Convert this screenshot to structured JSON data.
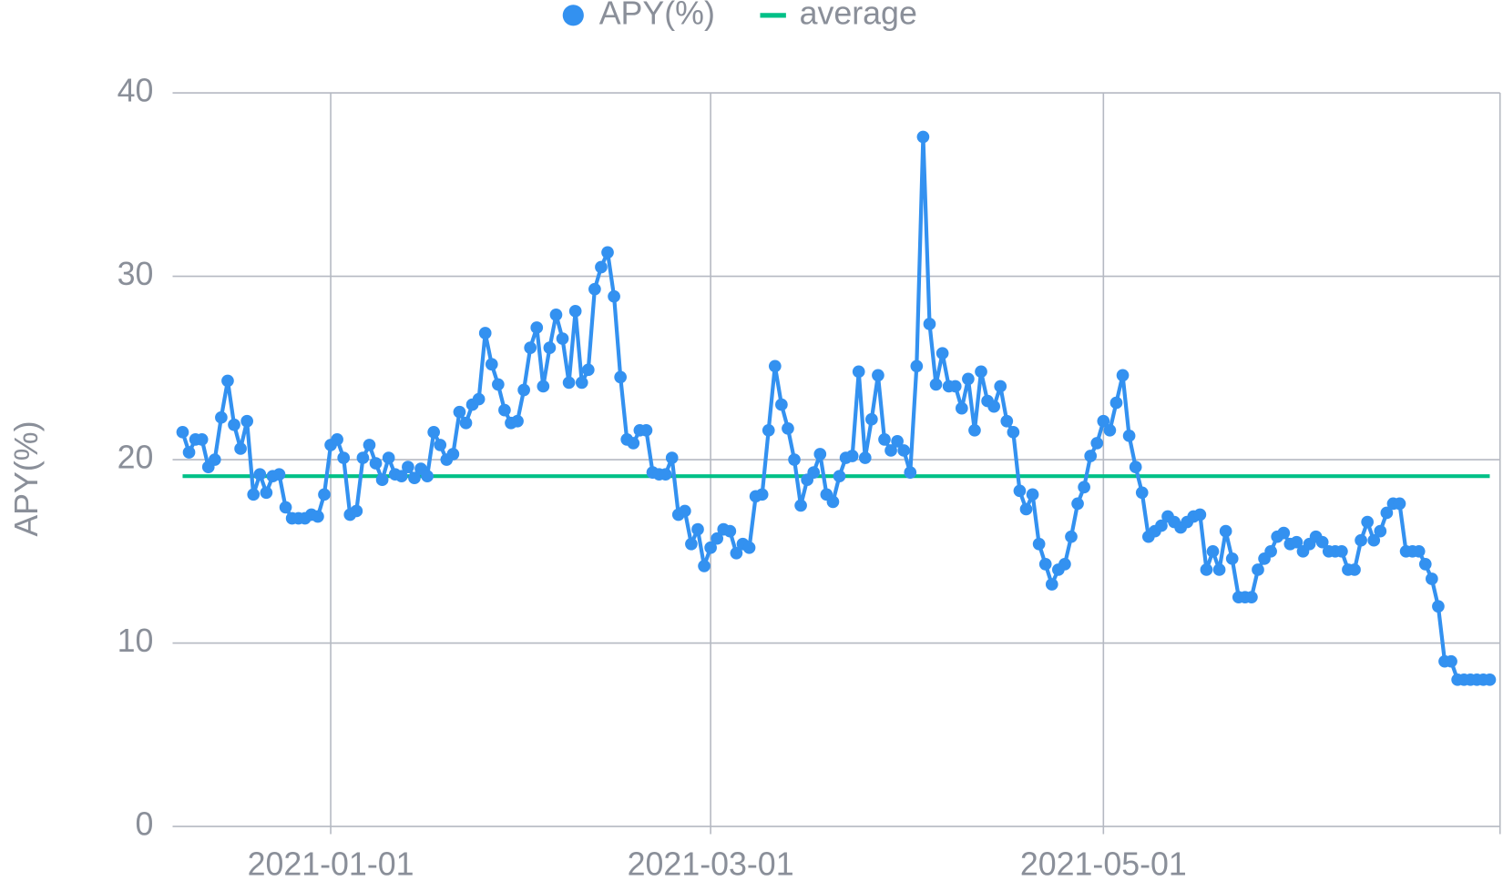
{
  "chart_data": {
    "type": "line",
    "y_label": "APY(%)",
    "x": [
      "2020-12-09",
      "2020-12-10",
      "2020-12-11",
      "2020-12-12",
      "2020-12-13",
      "2020-12-14",
      "2020-12-15",
      "2020-12-16",
      "2020-12-17",
      "2020-12-18",
      "2020-12-19",
      "2020-12-20",
      "2020-12-21",
      "2020-12-22",
      "2020-12-23",
      "2020-12-24",
      "2020-12-25",
      "2020-12-26",
      "2020-12-27",
      "2020-12-28",
      "2020-12-29",
      "2020-12-30",
      "2020-12-31",
      "2021-01-01",
      "2021-01-02",
      "2021-01-03",
      "2021-01-04",
      "2021-01-05",
      "2021-01-06",
      "2021-01-07",
      "2021-01-08",
      "2021-01-09",
      "2021-01-10",
      "2021-01-11",
      "2021-01-12",
      "2021-01-13",
      "2021-01-14",
      "2021-01-15",
      "2021-01-16",
      "2021-01-17",
      "2021-01-18",
      "2021-01-19",
      "2021-01-20",
      "2021-01-21",
      "2021-01-22",
      "2021-01-23",
      "2021-01-24",
      "2021-01-25",
      "2021-01-26",
      "2021-01-27",
      "2021-01-28",
      "2021-01-29",
      "2021-01-30",
      "2021-01-31",
      "2021-02-01",
      "2021-02-02",
      "2021-02-03",
      "2021-02-04",
      "2021-02-05",
      "2021-02-06",
      "2021-02-07",
      "2021-02-08",
      "2021-02-09",
      "2021-02-10",
      "2021-02-11",
      "2021-02-12",
      "2021-02-13",
      "2021-02-14",
      "2021-02-15",
      "2021-02-16",
      "2021-02-17",
      "2021-02-18",
      "2021-02-19",
      "2021-02-20",
      "2021-02-21",
      "2021-02-22",
      "2021-02-23",
      "2021-02-24",
      "2021-02-25",
      "2021-02-26",
      "2021-02-27",
      "2021-02-28",
      "2021-03-01",
      "2021-03-02",
      "2021-03-03",
      "2021-03-04",
      "2021-03-05",
      "2021-03-06",
      "2021-03-07",
      "2021-03-08",
      "2021-03-09",
      "2021-03-10",
      "2021-03-11",
      "2021-03-12",
      "2021-03-13",
      "2021-03-14",
      "2021-03-15",
      "2021-03-16",
      "2021-03-17",
      "2021-03-18",
      "2021-03-19",
      "2021-03-20",
      "2021-03-21",
      "2021-03-22",
      "2021-03-23",
      "2021-03-24",
      "2021-03-25",
      "2021-03-26",
      "2021-03-27",
      "2021-03-28",
      "2021-03-29",
      "2021-03-30",
      "2021-03-31",
      "2021-04-01",
      "2021-04-02",
      "2021-04-03",
      "2021-04-04",
      "2021-04-05",
      "2021-04-06",
      "2021-04-07",
      "2021-04-08",
      "2021-04-09",
      "2021-04-10",
      "2021-04-11",
      "2021-04-12",
      "2021-04-13",
      "2021-04-14",
      "2021-04-15",
      "2021-04-16",
      "2021-04-17",
      "2021-04-18",
      "2021-04-19",
      "2021-04-20",
      "2021-04-21",
      "2021-04-22",
      "2021-04-23",
      "2021-04-24",
      "2021-04-25",
      "2021-04-26",
      "2021-04-27",
      "2021-04-28",
      "2021-04-29",
      "2021-04-30",
      "2021-05-01",
      "2021-05-02",
      "2021-05-03",
      "2021-05-04",
      "2021-05-05",
      "2021-05-06",
      "2021-05-07",
      "2021-05-08",
      "2021-05-09",
      "2021-05-10",
      "2021-05-11",
      "2021-05-12",
      "2021-05-13",
      "2021-05-14",
      "2021-05-15",
      "2021-05-16",
      "2021-05-17",
      "2021-05-18",
      "2021-05-19",
      "2021-05-20",
      "2021-05-21",
      "2021-05-22",
      "2021-05-23",
      "2021-05-24",
      "2021-05-25",
      "2021-05-26",
      "2021-05-27",
      "2021-05-28",
      "2021-05-29",
      "2021-05-30",
      "2021-05-31",
      "2021-06-01",
      "2021-06-02",
      "2021-06-03",
      "2021-06-04",
      "2021-06-05",
      "2021-06-06",
      "2021-06-07",
      "2021-06-08",
      "2021-06-09",
      "2021-06-10",
      "2021-06-11",
      "2021-06-12",
      "2021-06-13",
      "2021-06-14",
      "2021-06-15",
      "2021-06-16",
      "2021-06-17",
      "2021-06-18",
      "2021-06-19",
      "2021-06-20",
      "2021-06-21",
      "2021-06-22",
      "2021-06-23",
      "2021-06-24",
      "2021-06-25",
      "2021-06-26",
      "2021-06-27",
      "2021-06-28",
      "2021-06-29",
      "2021-06-30"
    ],
    "series": [
      {
        "name": "APY(%)",
        "color": "#3391f0",
        "values": [
          21.5,
          20.4,
          21.1,
          21.1,
          19.6,
          20.0,
          22.3,
          24.3,
          21.9,
          20.6,
          22.1,
          18.1,
          19.2,
          18.2,
          19.1,
          19.2,
          17.4,
          16.8,
          16.8,
          16.8,
          17.0,
          16.9,
          18.1,
          20.8,
          21.1,
          20.1,
          17.0,
          17.2,
          20.1,
          20.8,
          19.8,
          18.9,
          20.1,
          19.2,
          19.1,
          19.6,
          19.0,
          19.5,
          19.1,
          21.5,
          20.8,
          20.0,
          20.3,
          22.6,
          22.0,
          23.0,
          23.3,
          26.9,
          25.2,
          24.1,
          22.7,
          22.0,
          22.1,
          23.8,
          26.1,
          27.2,
          24.0,
          26.1,
          27.9,
          26.6,
          24.2,
          28.1,
          24.2,
          24.9,
          29.3,
          30.5,
          31.3,
          28.9,
          24.5,
          21.1,
          20.9,
          21.6,
          21.6,
          19.3,
          19.2,
          19.2,
          20.1,
          17.0,
          17.2,
          15.4,
          16.2,
          14.2,
          15.2,
          15.7,
          16.2,
          16.1,
          14.9,
          15.4,
          15.2,
          18.0,
          18.1,
          21.6,
          25.1,
          23.0,
          21.7,
          20.0,
          17.5,
          18.9,
          19.3,
          20.3,
          18.1,
          17.7,
          19.1,
          20.1,
          20.2,
          24.8,
          20.1,
          22.2,
          24.6,
          21.1,
          20.5,
          21.0,
          20.5,
          19.3,
          25.1,
          37.6,
          27.4,
          24.1,
          25.8,
          24.0,
          24.0,
          22.8,
          24.4,
          21.6,
          24.8,
          23.2,
          22.9,
          24.0,
          22.1,
          21.5,
          18.3,
          17.3,
          18.1,
          15.4,
          14.3,
          13.2,
          14.0,
          14.3,
          15.8,
          17.6,
          18.5,
          20.2,
          20.9,
          22.1,
          21.6,
          23.1,
          24.6,
          21.3,
          19.6,
          18.2,
          15.8,
          16.1,
          16.4,
          16.9,
          16.6,
          16.3,
          16.6,
          16.9,
          17.0,
          14.0,
          15.0,
          14.0,
          16.1,
          14.6,
          12.5,
          12.5,
          12.5,
          14.0,
          14.6,
          15.0,
          15.8,
          16.0,
          15.4,
          15.5,
          15.0,
          15.4,
          15.8,
          15.5,
          15.0,
          15.0,
          15.0,
          14.0,
          14.0,
          15.6,
          16.6,
          15.6,
          16.1,
          17.1,
          17.6,
          17.6,
          15.0,
          15.0,
          15.0,
          14.3,
          13.5,
          12.0,
          9.0,
          9.0,
          8.0,
          8.0,
          8.0,
          8.0,
          8.0,
          8.0
        ]
      }
    ],
    "average": {
      "name": "average",
      "color": "#00c087",
      "value": 19.1
    },
    "xlim": [
      "2020-12-07",
      "2021-07-01"
    ],
    "xticks": [
      "2021-01-01",
      "2021-03-01",
      "2021-05-01"
    ],
    "ylim": [
      0,
      40
    ],
    "yticks": [
      0,
      10,
      20,
      30,
      40
    ],
    "grid": true,
    "legend": "top"
  }
}
